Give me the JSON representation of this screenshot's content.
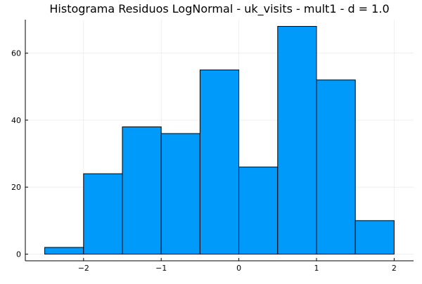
{
  "chart_data": {
    "type": "bar",
    "title": "Histograma Residuos LogNormal - uk_visits - mult1 - d = 1.0",
    "xlabel": "",
    "ylabel": "",
    "bins": [
      {
        "start": -2.5,
        "end": -2.0,
        "count": 2
      },
      {
        "start": -2.0,
        "end": -1.5,
        "count": 24
      },
      {
        "start": -1.5,
        "end": -1.0,
        "count": 38
      },
      {
        "start": -1.0,
        "end": -0.5,
        "count": 36
      },
      {
        "start": -0.5,
        "end": 0.0,
        "count": 55
      },
      {
        "start": 0.0,
        "end": 0.5,
        "count": 26
      },
      {
        "start": 0.5,
        "end": 1.0,
        "count": 68
      },
      {
        "start": 1.0,
        "end": 1.5,
        "count": 52
      },
      {
        "start": 1.5,
        "end": 2.0,
        "count": 10
      }
    ],
    "xlim": [
      -2.75,
      2.25
    ],
    "ylim": [
      -2,
      70
    ],
    "xticks": [
      {
        "value": -2,
        "label": "−2"
      },
      {
        "value": -1,
        "label": "−1"
      },
      {
        "value": 0,
        "label": "0"
      },
      {
        "value": 1,
        "label": "1"
      },
      {
        "value": 2,
        "label": "2"
      }
    ],
    "yticks": [
      {
        "value": 0,
        "label": "0"
      },
      {
        "value": 20,
        "label": "20"
      },
      {
        "value": 40,
        "label": "40"
      },
      {
        "value": 60,
        "label": "60"
      }
    ],
    "grid": true,
    "legend": "none",
    "colors": {
      "bar_fill": "#009AFA",
      "bar_stroke": "#000000",
      "grid": "#e6e6e6",
      "axis": "#000000"
    }
  }
}
